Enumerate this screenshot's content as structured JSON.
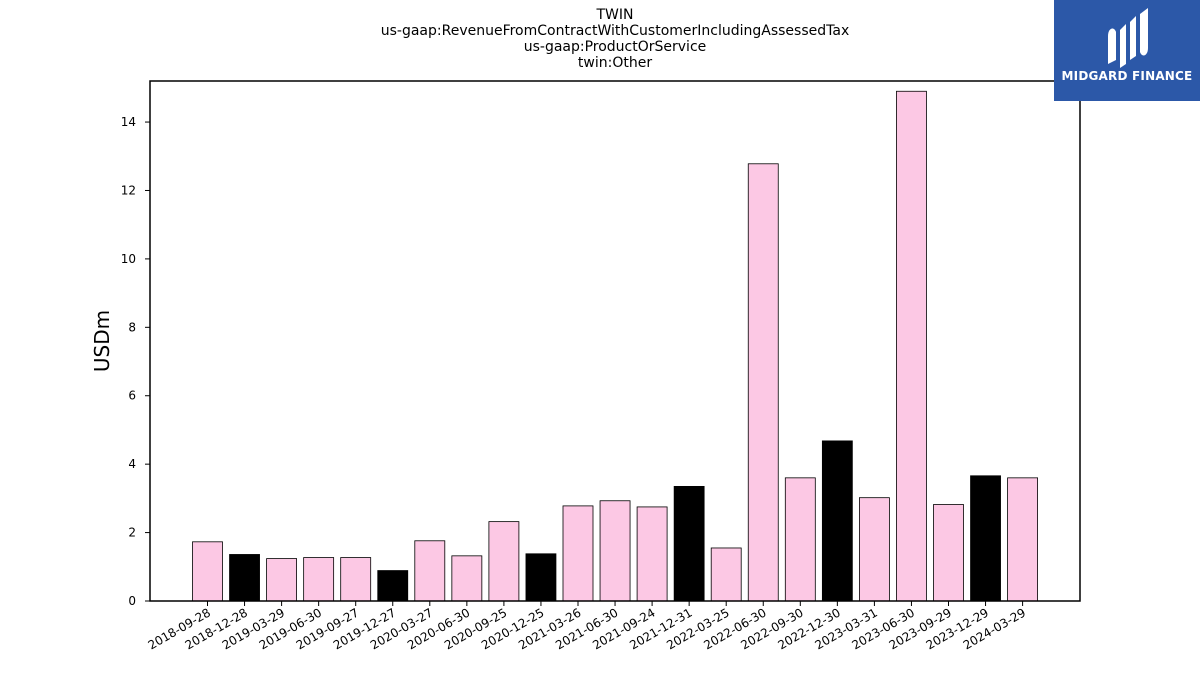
{
  "title_lines": [
    "TWIN",
    "us-gaap:RevenueFromContractWithCustomerIncludingAssessedTax",
    "us-gaap:ProductOrService",
    "twin:Other"
  ],
  "logo": {
    "text": "MIDGARD FINANCE",
    "background": "#2c58a8",
    "icon": "midgard-finance-logo-icon"
  },
  "chart_data": {
    "type": "bar",
    "ylabel": "USDm",
    "xlabel": "",
    "ylim": [
      0,
      15.2
    ],
    "yticks": [
      0,
      2,
      4,
      6,
      8,
      10,
      12,
      14
    ],
    "grid": false,
    "legend": "none",
    "colors": {
      "highlight": "#000000",
      "normal": "#fcc8e4"
    },
    "categories": [
      "2018-09-28",
      "2018-12-28",
      "2019-03-29",
      "2019-06-30",
      "2019-09-27",
      "2019-12-27",
      "2020-03-27",
      "2020-06-30",
      "2020-09-25",
      "2020-12-25",
      "2021-03-26",
      "2021-06-30",
      "2021-09-24",
      "2021-12-31",
      "2022-03-25",
      "2022-06-30",
      "2022-09-30",
      "2022-12-30",
      "2023-03-31",
      "2023-06-30",
      "2023-09-29",
      "2023-12-29",
      "2024-03-29"
    ],
    "values": [
      1.73,
      1.36,
      1.24,
      1.27,
      1.27,
      0.89,
      1.76,
      1.32,
      2.32,
      1.38,
      2.78,
      2.93,
      2.75,
      3.35,
      1.55,
      12.78,
      3.6,
      4.68,
      3.02,
      14.9,
      2.82,
      3.66,
      3.6
    ],
    "highlight": [
      false,
      true,
      false,
      false,
      false,
      true,
      false,
      false,
      false,
      true,
      false,
      false,
      false,
      true,
      false,
      false,
      false,
      true,
      false,
      false,
      false,
      true,
      false
    ]
  }
}
